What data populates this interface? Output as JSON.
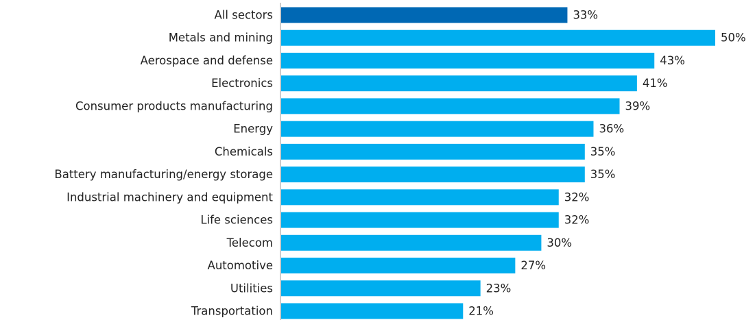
{
  "chart_data": {
    "type": "bar",
    "orientation": "horizontal",
    "categories": [
      "All sectors",
      "Metals and mining",
      "Aerospace and defense",
      "Electronics",
      "Consumer products manufacturing",
      "Energy",
      "Chemicals",
      "Battery manufacturing/energy storage",
      "Industrial machinery and equipment",
      "Life sciences",
      "Telecom",
      "Automotive",
      "Utilities",
      "Transportation"
    ],
    "values": [
      33,
      50,
      43,
      41,
      39,
      36,
      35,
      35,
      32,
      32,
      30,
      27,
      23,
      21
    ],
    "value_labels": [
      "33%",
      "50%",
      "43%",
      "41%",
      "39%",
      "36%",
      "35%",
      "35%",
      "32%",
      "32%",
      "30%",
      "27%",
      "23%",
      "21%"
    ],
    "colors": [
      "#0068b4",
      "#00aeef",
      "#00aeef",
      "#00aeef",
      "#00aeef",
      "#00aeef",
      "#00aeef",
      "#00aeef",
      "#00aeef",
      "#00aeef",
      "#00aeef",
      "#00aeef",
      "#00aeef",
      "#00aeef"
    ]
  }
}
